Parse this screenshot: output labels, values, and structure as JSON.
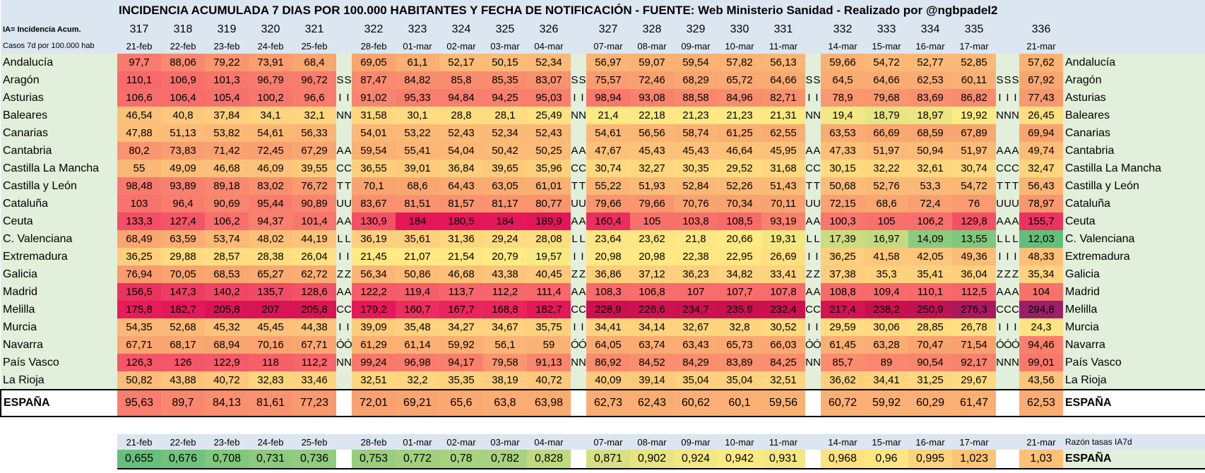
{
  "header": {
    "title": "INCIDENCIA ACUMULADA 7 DIAS POR 100.000 HABITANTES Y FECHA DE NOTIFICACIÓN - FUENTE: Web Ministerio Sanidad - Realizado por @ngbpadel2",
    "legend_line1": "IA= Incidencia Acum.",
    "legend_line2": "Casos 7d  por 100.000 hab"
  },
  "table": {
    "columns": [
      {
        "num": "317",
        "date": "21-feb"
      },
      {
        "num": "318",
        "date": "22-feb"
      },
      {
        "num": "319",
        "date": "23-feb"
      },
      {
        "num": "320",
        "date": "24-feb"
      },
      {
        "num": "321",
        "date": "25-feb"
      },
      {
        "num": "322",
        "date": "28-feb"
      },
      {
        "num": "323",
        "date": "01-mar"
      },
      {
        "num": "324",
        "date": "02-mar"
      },
      {
        "num": "325",
        "date": "03-mar"
      },
      {
        "num": "326",
        "date": "04-mar"
      },
      {
        "num": "327",
        "date": "07-mar"
      },
      {
        "num": "328",
        "date": "08-mar"
      },
      {
        "num": "329",
        "date": "09-mar"
      },
      {
        "num": "330",
        "date": "10-mar"
      },
      {
        "num": "331",
        "date": "11-mar"
      },
      {
        "num": "332",
        "date": "14-mar"
      },
      {
        "num": "333",
        "date": "15-mar"
      },
      {
        "num": "334",
        "date": "16-mar"
      },
      {
        "num": "335",
        "date": "17-mar"
      },
      {
        "num": "336",
        "date": "21-mar"
      }
    ],
    "rows": [
      {
        "name": "Andalucía",
        "values": [
          "97,7",
          "88,06",
          "79,22",
          "73,91",
          "68,4",
          "69,05",
          "61,1",
          "52,17",
          "50,15",
          "52,34",
          "56,97",
          "59,07",
          "59,54",
          "57,82",
          "56,13",
          "59,66",
          "54,72",
          "52,77",
          "52,85",
          "57,62"
        ]
      },
      {
        "name": "Aragón",
        "mark": "S",
        "values": [
          "110,1",
          "106,9",
          "101,3",
          "96,79",
          "96,72",
          "87,47",
          "84,82",
          "85,8",
          "85,35",
          "83,07",
          "75,57",
          "72,46",
          "68,29",
          "65,72",
          "64,66",
          "64,5",
          "64,66",
          "62,53",
          "60,11",
          "67,92"
        ]
      },
      {
        "name": "Asturias",
        "mark": "I",
        "values": [
          "106,6",
          "106,4",
          "105,4",
          "100,2",
          "96,6",
          "91,02",
          "95,33",
          "94,84",
          "94,25",
          "95,03",
          "98,94",
          "93,08",
          "88,58",
          "84,96",
          "82,71",
          "78,9",
          "79,68",
          "83,69",
          "86,82",
          "77,43"
        ]
      },
      {
        "name": "Baleares",
        "mark": "N",
        "values": [
          "46,54",
          "40,8",
          "37,84",
          "34,1",
          "32,1",
          "31,58",
          "30,1",
          "28,8",
          "28,1",
          "25,49",
          "21,4",
          "22,18",
          "21,23",
          "21,23",
          "21,31",
          "19,4",
          "18,79",
          "18,97",
          "19,92",
          "26,45"
        ]
      },
      {
        "name": "Canarias",
        "values": [
          "47,88",
          "51,13",
          "53,82",
          "54,61",
          "56,33",
          "54,01",
          "53,22",
          "52,43",
          "52,34",
          "52,43",
          "54,61",
          "56,56",
          "58,74",
          "61,25",
          "62,55",
          "63,53",
          "66,69",
          "68,59",
          "67,89",
          "69,94"
        ]
      },
      {
        "name": "Cantabria",
        "mark": "A",
        "values": [
          "80,2",
          "73,83",
          "71,42",
          "72,45",
          "67,29",
          "59,54",
          "55,41",
          "54,04",
          "50,42",
          "50,25",
          "47,67",
          "45,43",
          "45,43",
          "46,64",
          "45,95",
          "47,33",
          "51,97",
          "50,94",
          "51,97",
          "49,74"
        ]
      },
      {
        "name": "Castilla La Mancha",
        "mark": "C",
        "values": [
          "55",
          "49,09",
          "46,68",
          "46,09",
          "39,55",
          "36,55",
          "39,01",
          "36,84",
          "39,65",
          "35,96",
          "30,74",
          "32,27",
          "30,35",
          "29,52",
          "31,68",
          "30,15",
          "32,22",
          "32,61",
          "30,74",
          "32,47"
        ]
      },
      {
        "name": "Castilla y León",
        "mark": "T",
        "values": [
          "98,48",
          "93,89",
          "89,18",
          "83,02",
          "76,72",
          "70,1",
          "68,6",
          "64,43",
          "63,05",
          "61,01",
          "55,22",
          "51,93",
          "52,84",
          "52,26",
          "51,43",
          "50,68",
          "52,76",
          "53,3",
          "54,72",
          "56,43"
        ]
      },
      {
        "name": "Cataluña",
        "mark": "U",
        "values": [
          "103",
          "96,4",
          "90,69",
          "95,44",
          "90,89",
          "83,67",
          "81,51",
          "81,57",
          "81,17",
          "80,77",
          "79,66",
          "79,66",
          "70,76",
          "70,34",
          "70,11",
          "72,15",
          "68,6",
          "72,4",
          "76",
          "78,97"
        ]
      },
      {
        "name": "Ceuta",
        "mark": "A",
        "values": [
          "133,3",
          "127,4",
          "106,2",
          "94,37",
          "101,4",
          "130,9",
          "184",
          "180,5",
          "184",
          "189,9",
          "160,4",
          "105",
          "103,8",
          "108,5",
          "93,19",
          "100,3",
          "105",
          "106,2",
          "129,8",
          "155,7"
        ]
      },
      {
        "name": "C. Valenciana",
        "mark": "L",
        "values": [
          "68,49",
          "63,59",
          "53,74",
          "48,02",
          "44,19",
          "36,19",
          "35,61",
          "31,36",
          "29,24",
          "28,08",
          "23,64",
          "23,62",
          "21,8",
          "20,66",
          "19,31",
          "17,39",
          "16,97",
          "14,09",
          "13,55",
          "12,03"
        ]
      },
      {
        "name": "Extremadura",
        "mark": "I",
        "values": [
          "36,25",
          "29,88",
          "28,57",
          "28,38",
          "26,04",
          "21,45",
          "21,07",
          "21,54",
          "20,79",
          "19,57",
          "20,98",
          "20,98",
          "22,38",
          "22,95",
          "26,69",
          "36,25",
          "41,58",
          "42,05",
          "49,36",
          "48,33"
        ]
      },
      {
        "name": "Galicia",
        "mark": "Z",
        "values": [
          "76,94",
          "70,05",
          "68,53",
          "65,27",
          "62,72",
          "56,34",
          "50,86",
          "46,68",
          "43,38",
          "40,45",
          "36,86",
          "37,12",
          "36,23",
          "34,82",
          "33,41",
          "37,38",
          "35,3",
          "35,41",
          "36,04",
          "35,34"
        ]
      },
      {
        "name": "Madrid",
        "mark": "A",
        "values": [
          "156,5",
          "147,3",
          "140,2",
          "135,7",
          "128,6",
          "122,2",
          "119,4",
          "113,7",
          "112,2",
          "111,4",
          "108,3",
          "106,8",
          "107",
          "107,7",
          "107,8",
          "108,8",
          "109,4",
          "110,1",
          "112,5",
          "104"
        ]
      },
      {
        "name": "Melilla",
        "mark": "C",
        "values": [
          "175,8",
          "182,7",
          "205,8",
          "207",
          "205,8",
          "179,2",
          "160,7",
          "167,7",
          "168,8",
          "182,7",
          "228,9",
          "226,6",
          "234,7",
          "235,9",
          "232,4",
          "217,4",
          "238,2",
          "250,9",
          "276,3",
          "294,8"
        ]
      },
      {
        "name": "Murcia",
        "mark": "I",
        "values": [
          "54,35",
          "52,68",
          "45,32",
          "45,45",
          "44,38",
          "39,09",
          "35,48",
          "34,27",
          "34,67",
          "35,75",
          "34,41",
          "34,14",
          "32,67",
          "32,8",
          "30,52",
          "29,59",
          "30,06",
          "28,85",
          "26,78",
          "24,3"
        ]
      },
      {
        "name": "Navarra",
        "mark": "Ó",
        "values": [
          "67,71",
          "68,17",
          "68,94",
          "70,16",
          "67,71",
          "61,29",
          "61,14",
          "59,92",
          "56,1",
          "59",
          "64,05",
          "63,74",
          "63,43",
          "65,73",
          "66,03",
          "61,45",
          "63,28",
          "70,47",
          "71,54",
          "94,46"
        ]
      },
      {
        "name": "País Vasco",
        "mark": "N",
        "values": [
          "126,3",
          "126",
          "122,9",
          "118",
          "112,2",
          "99,24",
          "96,98",
          "94,17",
          "79,58",
          "91,13",
          "86,92",
          "84,52",
          "84,29",
          "83,89",
          "84,25",
          "85,7",
          "89",
          "90,54",
          "92,17",
          "99,01"
        ]
      },
      {
        "name": "La Rioja",
        "values": [
          "50,82",
          "43,88",
          "40,72",
          "32,83",
          "33,46",
          "32,51",
          "32,2",
          "35,35",
          "38,19",
          "40,72",
          "40,09",
          "39,14",
          "35,04",
          "35,04",
          "32,51",
          "36,62",
          "34,41",
          "31,25",
          "29,67",
          "43,56"
        ]
      }
    ],
    "total": {
      "name": "ESPAÑA",
      "values": [
        "95,63",
        "89,7",
        "84,13",
        "81,61",
        "77,23",
        "72,01",
        "69,21",
        "65,6",
        "63,8",
        "63,98",
        "62,73",
        "62,43",
        "60,62",
        "60,1",
        "59,56",
        "60,72",
        "59,92",
        "60,29",
        "61,47",
        "62,53"
      ]
    }
  },
  "ratio": {
    "label": "Razón tasas IA7d",
    "name": "ESPAÑA",
    "values": [
      "0,655",
      "0,676",
      "0,708",
      "0,731",
      "0,736",
      "0,753",
      "0,772",
      "0,78",
      "0,782",
      "0,828",
      "0,871",
      "0,902",
      "0,924",
      "0,942",
      "0,931",
      "0,968",
      "0,96",
      "0,995",
      "1,023",
      "1,03"
    ]
  }
}
